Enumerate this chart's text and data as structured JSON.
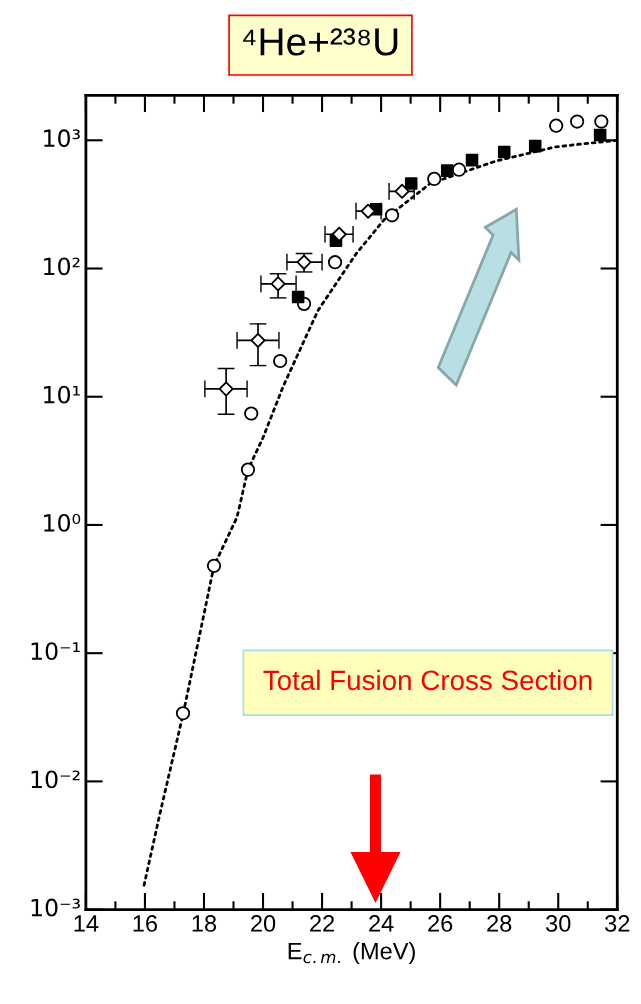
{
  "chart_data": {
    "type": "scatter",
    "title": "⁴He+²³⁸U",
    "xlabel": "E$_{c.m.}$ (MeV)",
    "annotations": [
      "Total Fusion Cross Section"
    ],
    "log": "y",
    "xlim": [
      14,
      32
    ],
    "ylim": [
      0.001,
      2240
    ],
    "xticks": [
      14,
      16,
      18,
      20,
      22,
      24,
      26,
      28,
      30,
      32
    ],
    "yticks": [
      {
        "value": 0.001,
        "label": "10⁻³"
      },
      {
        "value": 0.01,
        "label": "10⁻²"
      },
      {
        "value": 0.1,
        "label": "10⁻¹"
      },
      {
        "value": 1,
        "label": "10⁰"
      },
      {
        "value": 10,
        "label": "10¹"
      },
      {
        "value": 100,
        "label": "10²"
      },
      {
        "value": 1000,
        "label": "10³"
      }
    ],
    "grid": false,
    "legend": false,
    "series": [
      {
        "type": "line",
        "color": "#000000",
        "line_style": "dotted",
        "marker": "none",
        "x": [
          15.97,
          16.5,
          17.3,
          18.34,
          19.12,
          19.49,
          20.0,
          20.68,
          21.86,
          23.15,
          24.1,
          25.66,
          27.9,
          29.93,
          31.98
        ],
        "values": [
          0.00155,
          0.0055,
          0.034,
          0.48,
          1.15,
          2.7,
          4.8,
          12,
          47,
          130,
          240,
          460,
          690,
          890,
          1000
        ]
      },
      {
        "color": "#000000",
        "marker": "circle",
        "x": [
          17.29,
          18.34,
          19.49,
          19.6,
          20.58,
          21.39,
          22.44,
          24.37,
          25.8,
          26.64,
          29.93,
          30.64,
          31.46
        ],
        "values": [
          0.034,
          0.48,
          2.7,
          7.4,
          19,
          53,
          112,
          260,
          500,
          590,
          1300,
          1400,
          1400
        ]
      },
      {
        "color": "#000000",
        "marker": "square",
        "x": [
          21.19,
          22.47,
          23.83,
          25.02,
          26.24,
          27.08,
          28.17,
          29.22,
          31.42
        ],
        "values": [
          60,
          165,
          290,
          460,
          580,
          700,
          810,
          900,
          1100
        ]
      },
      {
        "color": "#000000",
        "marker": "diamond",
        "x": [
          18.75,
          19.83,
          20.51,
          21.39,
          22.58,
          23.56,
          24.71
        ],
        "values": [
          11.5,
          27.5,
          76,
          112,
          185,
          280,
          400
        ],
        "errors": [
          [
            7.3,
            16.6
          ],
          [
            17.5,
            37
          ],
          [
            59,
            91
          ],
          [
            94,
            131
          ],
          null,
          null,
          null
        ],
        "xerrors": [
          [
            18.03,
            19.46
          ],
          [
            19.12,
            20.54
          ],
          [
            19.93,
            21.12
          ],
          [
            20.81,
            22.0
          ],
          [
            22.1,
            23.05
          ],
          [
            23.15,
            24.0
          ],
          [
            24.27,
            25.12
          ]
        ]
      }
    ]
  }
}
